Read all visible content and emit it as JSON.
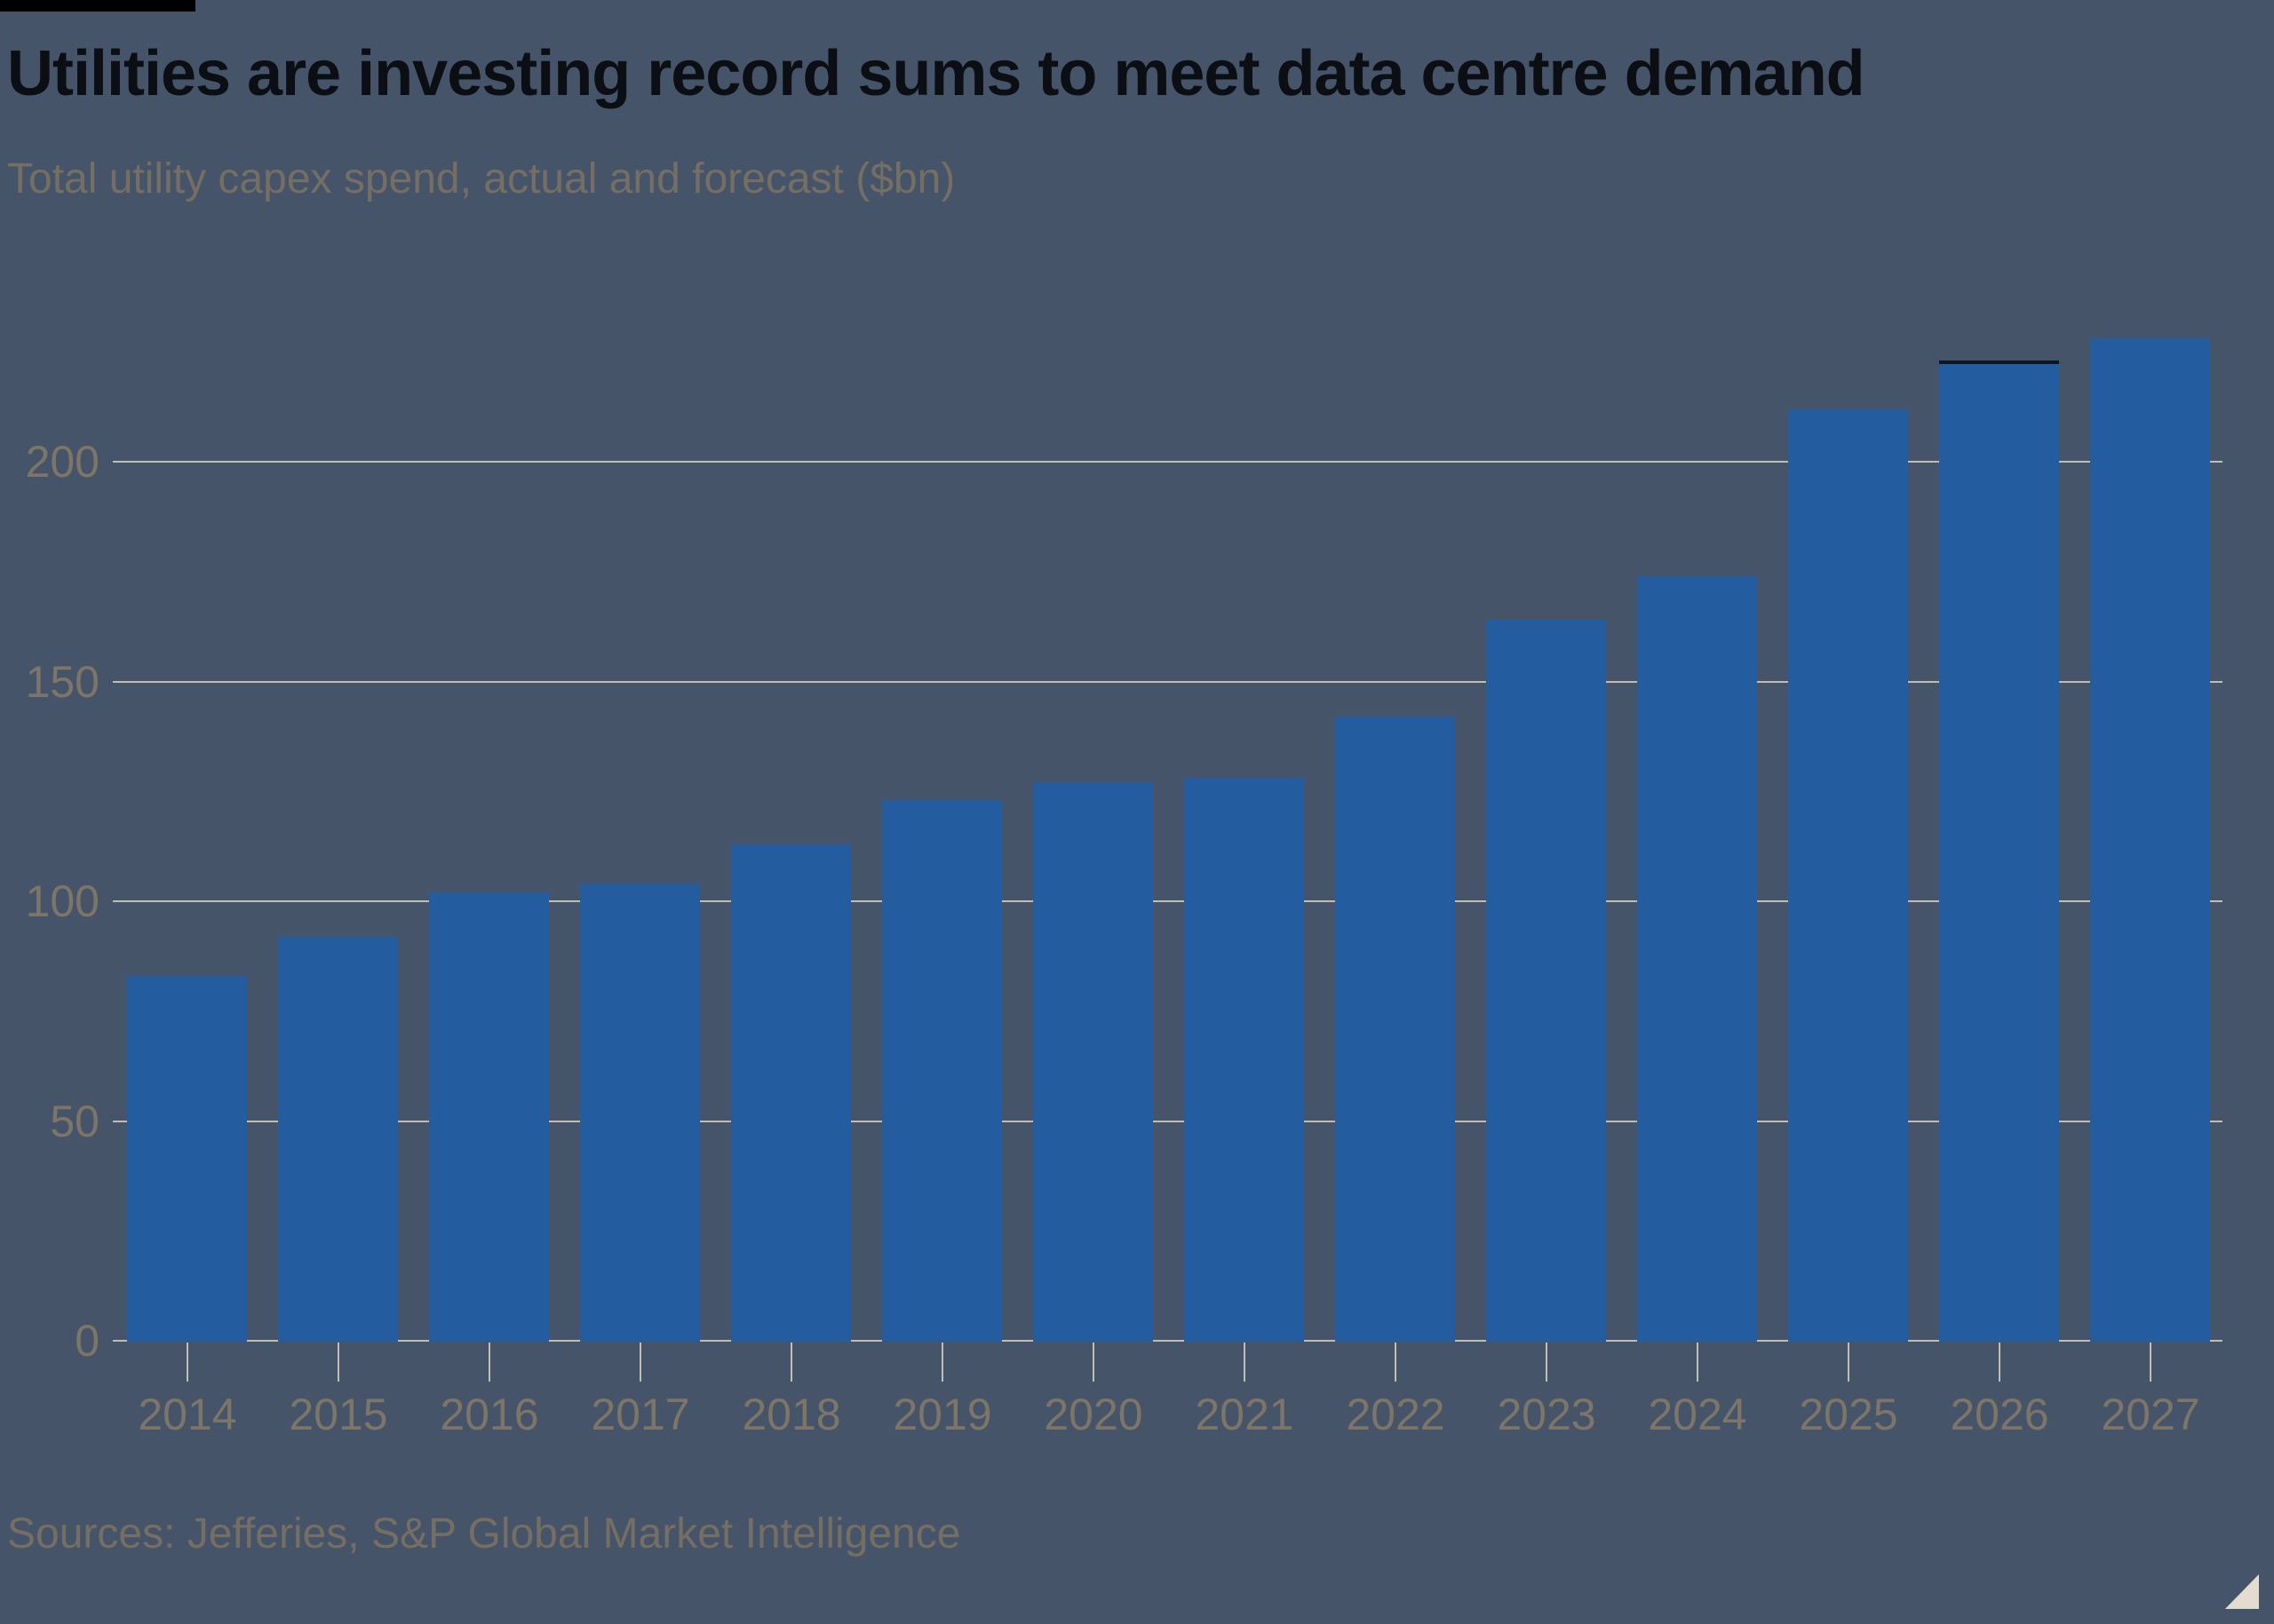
{
  "header": {
    "title": "Utilities are investing record sums to meet data centre demand",
    "subtitle": "Total utility capex spend, actual and forecast ($bn)"
  },
  "footer": {
    "sources": "Sources: Jefferies, S&P Global Market Intelligence"
  },
  "colors": {
    "background": "#46546A",
    "bar": "#235D9F",
    "bar_top_accent": "#0C1524",
    "gridline": "#D6D0C2",
    "axis_label": "#7C7568",
    "subtitle_text": "#756E63",
    "title_text": "#0B0E13",
    "top_brand_bar": "#000000",
    "resize_triangle": "#E4DCCF"
  },
  "chart_data": {
    "type": "bar",
    "title": "Utilities are investing record sums to meet data centre demand",
    "subtitle": "Total utility capex spend, actual and forecast ($bn)",
    "unit": "$bn",
    "categories": [
      "2014",
      "2015",
      "2016",
      "2017",
      "2018",
      "2019",
      "2020",
      "2021",
      "2022",
      "2023",
      "2024",
      "2025",
      "2026",
      "2027"
    ],
    "values": [
      83,
      92,
      102,
      104,
      113,
      123,
      127,
      128,
      142,
      164,
      174,
      212,
      223,
      228
    ],
    "yticks": [
      0,
      50,
      100,
      150,
      200
    ],
    "ylim": [
      0,
      230
    ],
    "xlabel": "",
    "ylabel": "",
    "grid": true,
    "legend": "none",
    "bar_top_accent_year": "2026",
    "sources": "Sources: Jefferies, S&P Global Market Intelligence"
  }
}
